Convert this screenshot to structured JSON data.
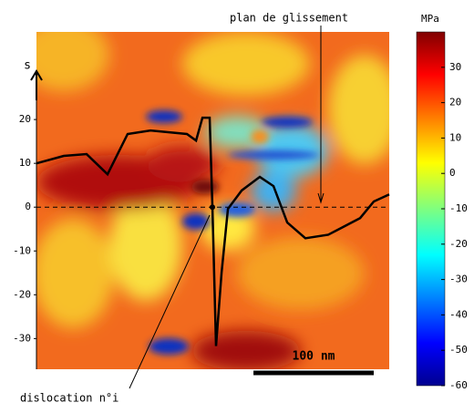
{
  "chart_data": {
    "type": "line",
    "y_axis_label": "s",
    "colorbar_label": "MPa",
    "annotations": [
      "plan de glissement",
      "dislocation n°i"
    ],
    "scale_bar": {
      "label": "100 nm",
      "length": 100
    },
    "x": [
      0,
      22.7,
      41.7,
      59.1,
      75.8,
      94.8,
      125.1,
      132.7,
      138,
      144,
      146.3,
      149.3,
      153.9,
      159.2,
      170.6,
      185.7,
      197.1,
      208.5,
      223.6,
      242.6,
      269.1,
      280.5,
      293.3
    ],
    "values": [
      10,
      11.7,
      12.1,
      7.5,
      16.7,
      17.5,
      16.7,
      15.2,
      20.4,
      20.4,
      0,
      -31.7,
      -15,
      -0.4,
      3.8,
      6.9,
      4.8,
      -3.5,
      -7.1,
      -6.3,
      -2.5,
      1.3,
      2.9
    ],
    "color": "#000000",
    "xlim": [
      0,
      293.3
    ],
    "ylim": [
      -37,
      40
    ],
    "yticks": [
      -30,
      -20,
      -10,
      0,
      10,
      20
    ],
    "colorbar": {
      "colormap": "jet",
      "clim": [
        -60,
        40
      ],
      "ticks": [
        -60,
        -50,
        -40,
        -30,
        -20,
        -10,
        0,
        10,
        20,
        30
      ]
    }
  }
}
